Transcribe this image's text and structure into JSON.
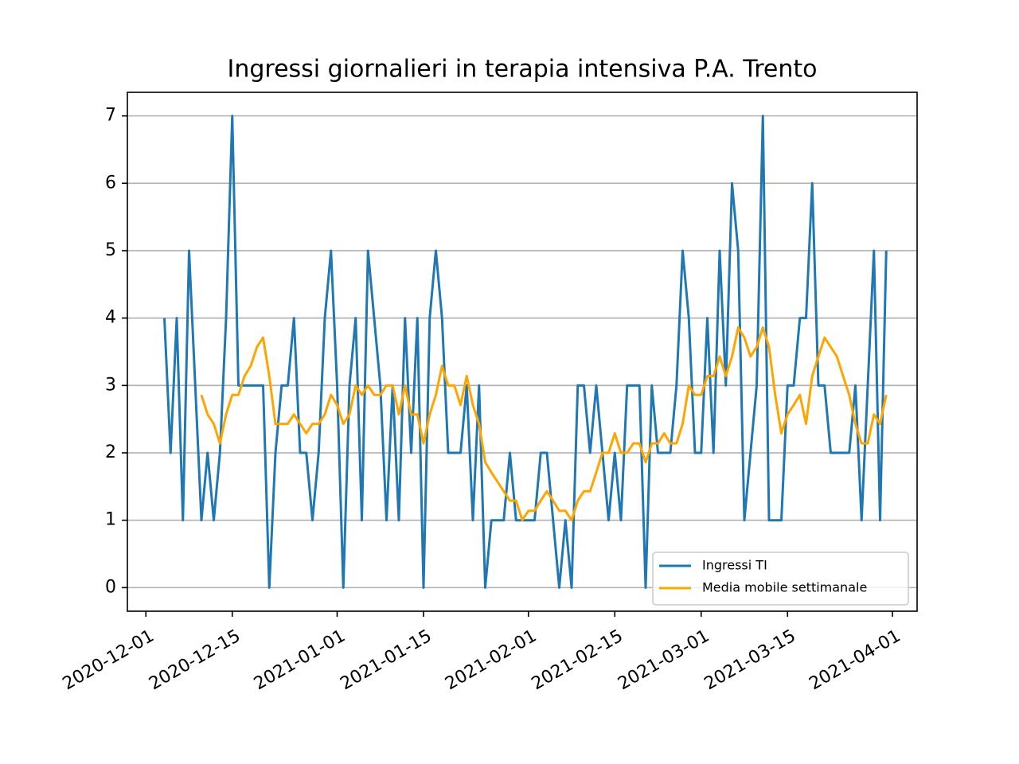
{
  "chart_data": {
    "type": "line",
    "title": "Ingressi giornalieri in terapia intensiva P.A. Trento",
    "x": [
      "2020-12-04",
      "2020-12-05",
      "2020-12-06",
      "2020-12-07",
      "2020-12-08",
      "2020-12-09",
      "2020-12-10",
      "2020-12-11",
      "2020-12-12",
      "2020-12-13",
      "2020-12-14",
      "2020-12-15",
      "2020-12-16",
      "2020-12-17",
      "2020-12-18",
      "2020-12-19",
      "2020-12-20",
      "2020-12-21",
      "2020-12-22",
      "2020-12-23",
      "2020-12-24",
      "2020-12-25",
      "2020-12-26",
      "2020-12-27",
      "2020-12-28",
      "2020-12-29",
      "2020-12-30",
      "2020-12-31",
      "2021-01-01",
      "2021-01-02",
      "2021-01-03",
      "2021-01-04",
      "2021-01-05",
      "2021-01-06",
      "2021-01-07",
      "2021-01-08",
      "2021-01-09",
      "2021-01-10",
      "2021-01-11",
      "2021-01-12",
      "2021-01-13",
      "2021-01-14",
      "2021-01-15",
      "2021-01-16",
      "2021-01-17",
      "2021-01-18",
      "2021-01-19",
      "2021-01-20",
      "2021-01-21",
      "2021-01-22",
      "2021-01-23",
      "2021-01-24",
      "2021-01-25",
      "2021-01-26",
      "2021-01-27",
      "2021-01-28",
      "2021-01-29",
      "2021-01-30",
      "2021-01-31",
      "2021-02-01",
      "2021-02-02",
      "2021-02-03",
      "2021-02-04",
      "2021-02-05",
      "2021-02-06",
      "2021-02-07",
      "2021-02-08",
      "2021-02-09",
      "2021-02-10",
      "2021-02-11",
      "2021-02-12",
      "2021-02-13",
      "2021-02-14",
      "2021-02-15",
      "2021-02-16",
      "2021-02-17",
      "2021-02-18",
      "2021-02-19",
      "2021-02-20",
      "2021-02-21",
      "2021-02-22",
      "2021-02-23",
      "2021-02-24",
      "2021-02-25",
      "2021-02-26",
      "2021-02-27",
      "2021-02-28",
      "2021-03-01",
      "2021-03-02",
      "2021-03-03",
      "2021-03-04",
      "2021-03-05",
      "2021-03-06",
      "2021-03-07",
      "2021-03-08",
      "2021-03-09",
      "2021-03-10",
      "2021-03-11",
      "2021-03-12",
      "2021-03-13",
      "2021-03-14",
      "2021-03-15",
      "2021-03-16",
      "2021-03-17",
      "2021-03-18",
      "2021-03-19",
      "2021-03-20",
      "2021-03-21",
      "2021-03-22",
      "2021-03-23",
      "2021-03-24",
      "2021-03-25",
      "2021-03-26",
      "2021-03-27",
      "2021-03-28",
      "2021-03-29",
      "2021-03-30",
      "2021-03-31"
    ],
    "series": [
      {
        "name": "Ingressi TI",
        "color": "#1f77b4",
        "values": [
          4,
          2,
          4,
          1,
          5,
          3,
          1,
          2,
          1,
          2,
          4,
          7,
          3,
          3,
          3,
          3,
          3,
          0,
          2,
          3,
          3,
          4,
          2,
          2,
          1,
          2,
          4,
          5,
          3,
          0,
          3,
          4,
          1,
          5,
          4,
          3,
          1,
          3,
          1,
          4,
          2,
          4,
          0,
          4,
          5,
          4,
          2,
          2,
          2,
          3,
          1,
          3,
          0,
          1,
          1,
          1,
          2,
          1,
          1,
          1,
          1,
          2,
          2,
          1,
          0,
          1,
          0,
          3,
          3,
          2,
          3,
          2,
          1,
          2,
          1,
          3,
          3,
          3,
          0,
          3,
          2,
          2,
          2,
          3,
          5,
          4,
          2,
          2,
          4,
          2,
          5,
          3,
          6,
          5,
          1,
          2,
          3,
          7,
          1,
          1,
          1,
          3,
          3,
          4,
          4,
          6,
          3,
          3,
          2,
          2,
          2,
          2,
          3,
          1,
          3,
          5,
          1,
          5
        ]
      },
      {
        "name": "Media mobile settimanale",
        "color": "#ffa500",
        "values": [
          null,
          null,
          null,
          null,
          null,
          null,
          2.86,
          2.57,
          2.43,
          2.14,
          2.57,
          2.86,
          2.86,
          3.14,
          3.29,
          3.57,
          3.71,
          3.14,
          2.43,
          2.43,
          2.43,
          2.57,
          2.43,
          2.29,
          2.43,
          2.43,
          2.57,
          2.86,
          2.71,
          2.43,
          2.57,
          3.0,
          2.86,
          3.0,
          2.86,
          2.86,
          3.0,
          3.0,
          2.57,
          3.0,
          2.57,
          2.57,
          2.14,
          2.57,
          2.86,
          3.29,
          3.0,
          3.0,
          2.71,
          3.14,
          2.71,
          2.43,
          1.86,
          1.71,
          1.57,
          1.43,
          1.29,
          1.29,
          1.0,
          1.14,
          1.14,
          1.29,
          1.43,
          1.29,
          1.14,
          1.14,
          1.0,
          1.29,
          1.43,
          1.43,
          1.71,
          2.0,
          2.0,
          2.29,
          2.0,
          2.0,
          2.14,
          2.14,
          1.86,
          2.14,
          2.14,
          2.29,
          2.14,
          2.14,
          2.43,
          3.0,
          2.86,
          2.86,
          3.14,
          3.14,
          3.43,
          3.14,
          3.43,
          3.86,
          3.71,
          3.43,
          3.57,
          3.86,
          3.57,
          2.86,
          2.29,
          2.57,
          2.71,
          2.86,
          2.43,
          3.14,
          3.43,
          3.71,
          3.57,
          3.43,
          3.14,
          2.86,
          2.43,
          2.14,
          2.14,
          2.57,
          2.43,
          2.86
        ]
      }
    ],
    "xlim": [
      "2020-11-28",
      "2021-04-05"
    ],
    "xticks": [
      "2020-12-01",
      "2020-12-15",
      "2021-01-01",
      "2021-01-15",
      "2021-02-01",
      "2021-02-15",
      "2021-03-01",
      "2021-03-15",
      "2021-04-01"
    ],
    "ylim": [
      -0.35,
      7.35
    ],
    "yticks": [
      0,
      1,
      2,
      3,
      4,
      5,
      6,
      7
    ],
    "grid": "y",
    "legend": "lower right"
  }
}
